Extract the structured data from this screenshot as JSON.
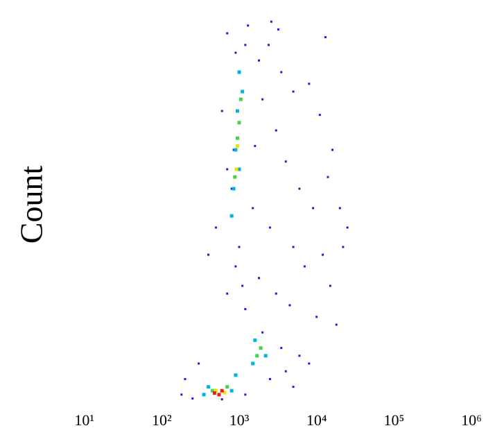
{
  "chart_data": {
    "type": "scatter",
    "y_label": "Count",
    "xscale": "log",
    "xlim": [
      1,
      1000000
    ],
    "ylim": [
      0,
      100
    ],
    "xticks": [
      {
        "value": 10,
        "label": "10¹"
      },
      {
        "value": 100,
        "label": "10²"
      },
      {
        "value": 1000,
        "label": "10³"
      },
      {
        "value": 10000,
        "label": "10⁴"
      },
      {
        "value": 100000,
        "label": "10⁵"
      },
      {
        "value": 1000000,
        "label": "10⁶"
      }
    ],
    "series": [
      {
        "color": "#1a1adc",
        "x": [
          700,
          1300,
          2600,
          3200,
          900,
          1800,
          2400,
          3500,
          5000,
          13000,
          600,
          2000,
          3000,
          8000,
          11000,
          16000,
          700,
          1600,
          4000,
          6000,
          9000,
          20000,
          22000,
          500,
          1500,
          2500,
          5000,
          7000,
          12000,
          15000,
          400,
          900,
          1800,
          3000,
          4500,
          10000,
          18000,
          700,
          1200,
          2000,
          3500,
          6000,
          8000,
          300,
          200,
          180,
          250,
          600,
          1200,
          2500,
          4000,
          5000,
          1100,
          1000,
          800,
          850,
          1000,
          1200,
          14000,
          25000
        ],
        "y": [
          95,
          97,
          98,
          96,
          90,
          88,
          92,
          85,
          80,
          94,
          75,
          78,
          70,
          82,
          74,
          65,
          60,
          66,
          62,
          55,
          50,
          50,
          40,
          45,
          50,
          45,
          40,
          35,
          38,
          30,
          38,
          35,
          32,
          28,
          25,
          22,
          20,
          28,
          24,
          18,
          14,
          12,
          10,
          10,
          6,
          2,
          1,
          0.8,
          2,
          6,
          8,
          4,
          30,
          40,
          55,
          65,
          85,
          92,
          58,
          45
        ]
      },
      {
        "color": "#00b4e6",
        "x": [
          1000,
          950,
          900,
          850,
          800,
          1100,
          1000,
          1600,
          2200,
          1500,
          400,
          800,
          350,
          900
        ],
        "y": [
          85,
          75,
          65,
          55,
          48,
          80,
          60,
          16,
          12,
          10,
          4,
          3,
          2,
          7
        ]
      },
      {
        "color": "#4cd04c",
        "x": [
          1050,
          950,
          880,
          1000,
          1900,
          1700,
          450,
          700
        ],
        "y": [
          78,
          68,
          58,
          72,
          14,
          12,
          3,
          4
        ]
      },
      {
        "color": "#f0e000",
        "x": [
          950,
          920,
          500,
          650
        ],
        "y": [
          66,
          60,
          3,
          2.5
        ]
      },
      {
        "color": "#e8201a",
        "x": [
          550,
          600,
          480
        ],
        "y": [
          2,
          3,
          2.4
        ]
      }
    ]
  }
}
